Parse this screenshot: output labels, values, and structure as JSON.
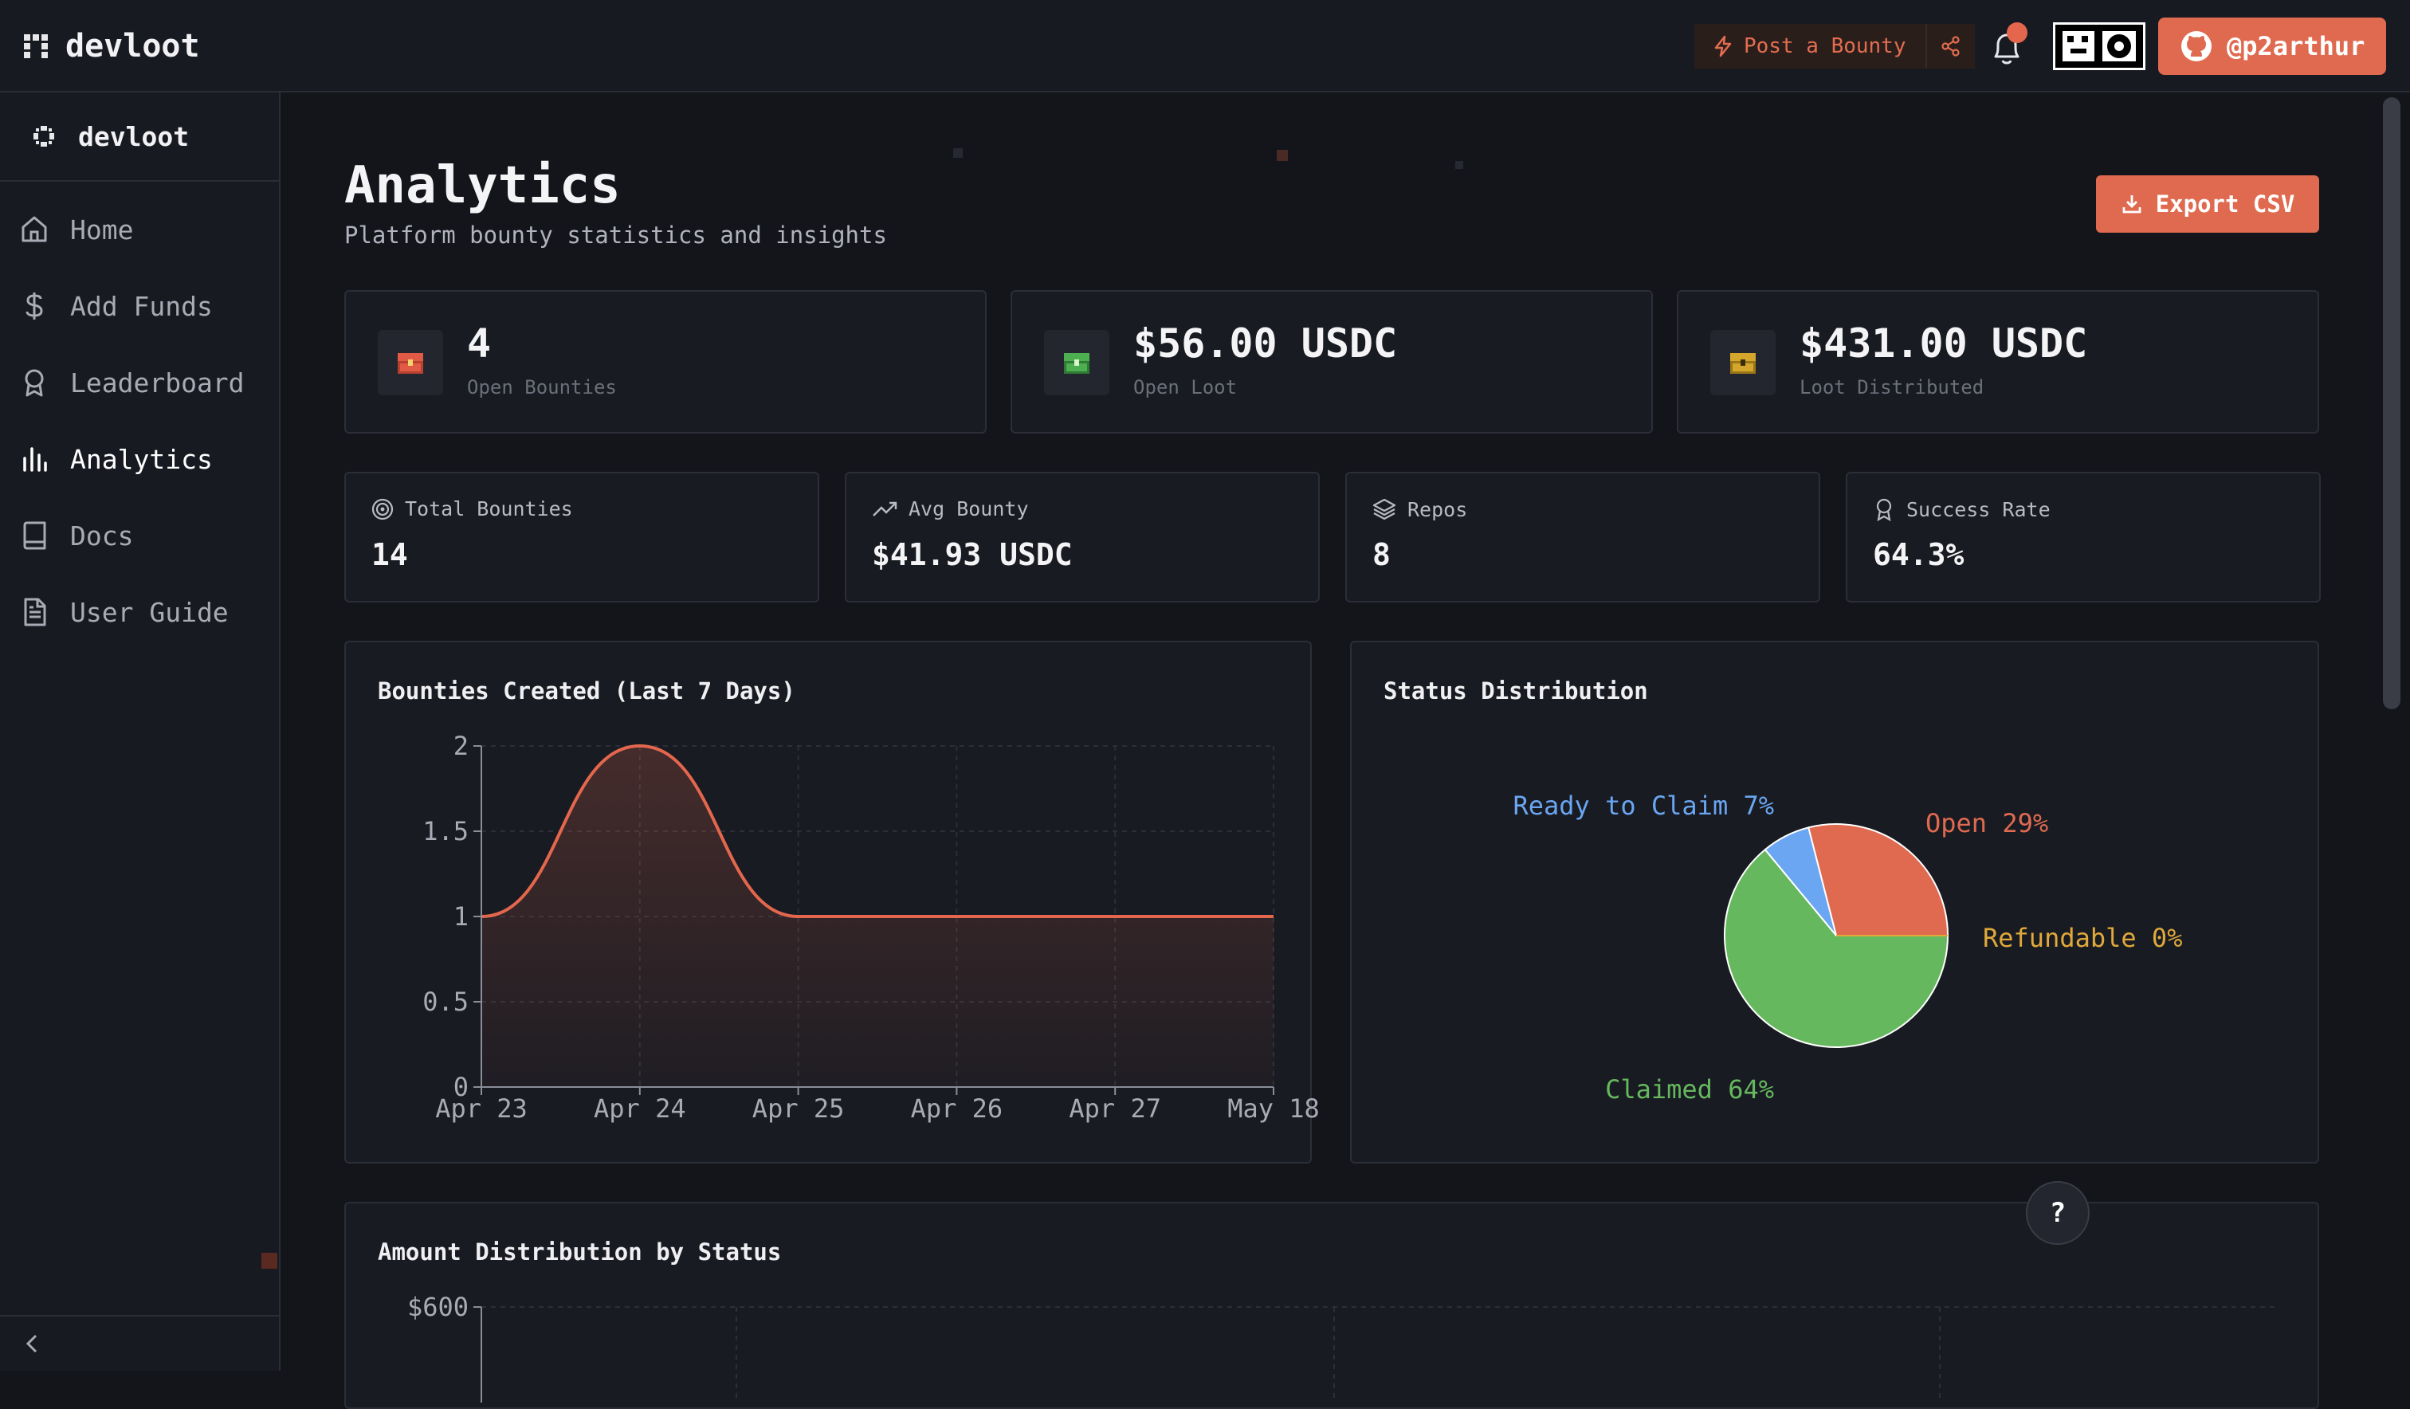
{
  "app": {
    "name": "devloot"
  },
  "header": {
    "post_bounty_label": "Post a Bounty",
    "github_user": "@p2arthur"
  },
  "sidebar": {
    "brand": "devloot",
    "items": [
      {
        "label": "Home",
        "icon": "home-icon"
      },
      {
        "label": "Add Funds",
        "icon": "dollar-icon"
      },
      {
        "label": "Leaderboard",
        "icon": "award-icon"
      },
      {
        "label": "Analytics",
        "icon": "bar-chart-icon",
        "active": true
      },
      {
        "label": "Docs",
        "icon": "book-icon"
      },
      {
        "label": "User Guide",
        "icon": "file-text-icon"
      }
    ]
  },
  "page": {
    "title": "Analytics",
    "subtitle": "Platform bounty statistics and insights",
    "export_label": "Export CSV"
  },
  "stats_primary": [
    {
      "value": "4",
      "label": "Open Bounties",
      "color": "#e05a45"
    },
    {
      "value": "$56.00 USDC",
      "label": "Open Loot",
      "color": "#4caf50"
    },
    {
      "value": "$431.00 USDC",
      "label": "Loot Distributed",
      "color": "#d4a72c"
    }
  ],
  "stats_secondary": [
    {
      "label": "Total Bounties",
      "value": "14",
      "icon": "target-icon"
    },
    {
      "label": "Avg Bounty",
      "value": "$41.93 USDC",
      "icon": "trending-up-icon"
    },
    {
      "label": "Repos",
      "value": "8",
      "icon": "layers-icon"
    },
    {
      "label": "Success Rate",
      "value": "64.3%",
      "icon": "award-icon"
    }
  ],
  "charts": {
    "line_title": "Bounties Created (Last 7 Days)",
    "pie_title": "Status Distribution",
    "amount_title": "Amount Distribution by Status"
  },
  "chart_data": [
    {
      "type": "area",
      "title": "Bounties Created (Last 7 Days)",
      "categories": [
        "Apr 23",
        "Apr 24",
        "Apr 25",
        "Apr 26",
        "Apr 27",
        "May 18"
      ],
      "values": [
        1,
        2,
        1,
        1,
        1,
        1
      ],
      "yticks": [
        "0",
        "0.5",
        "1",
        "1.5",
        "2"
      ],
      "ylim": [
        0,
        2
      ],
      "grid": true,
      "color": "#e4674d"
    },
    {
      "type": "pie",
      "title": "Status Distribution",
      "slices": [
        {
          "name": "Open",
          "value": 29,
          "label": "Open 29%",
          "color": "#df6a50"
        },
        {
          "name": "Refundable",
          "value": 0,
          "label": "Refundable 0%",
          "color": "#e0a93a"
        },
        {
          "name": "Claimed",
          "value": 64,
          "label": "Claimed 64%",
          "color": "#66b85e"
        },
        {
          "name": "Ready to Claim",
          "value": 7,
          "label": "Ready to Claim 7%",
          "color": "#6aa6f2"
        }
      ]
    },
    {
      "type": "bar",
      "title": "Amount Distribution by Status",
      "yticks": [
        "$600"
      ],
      "grid": true
    }
  ]
}
